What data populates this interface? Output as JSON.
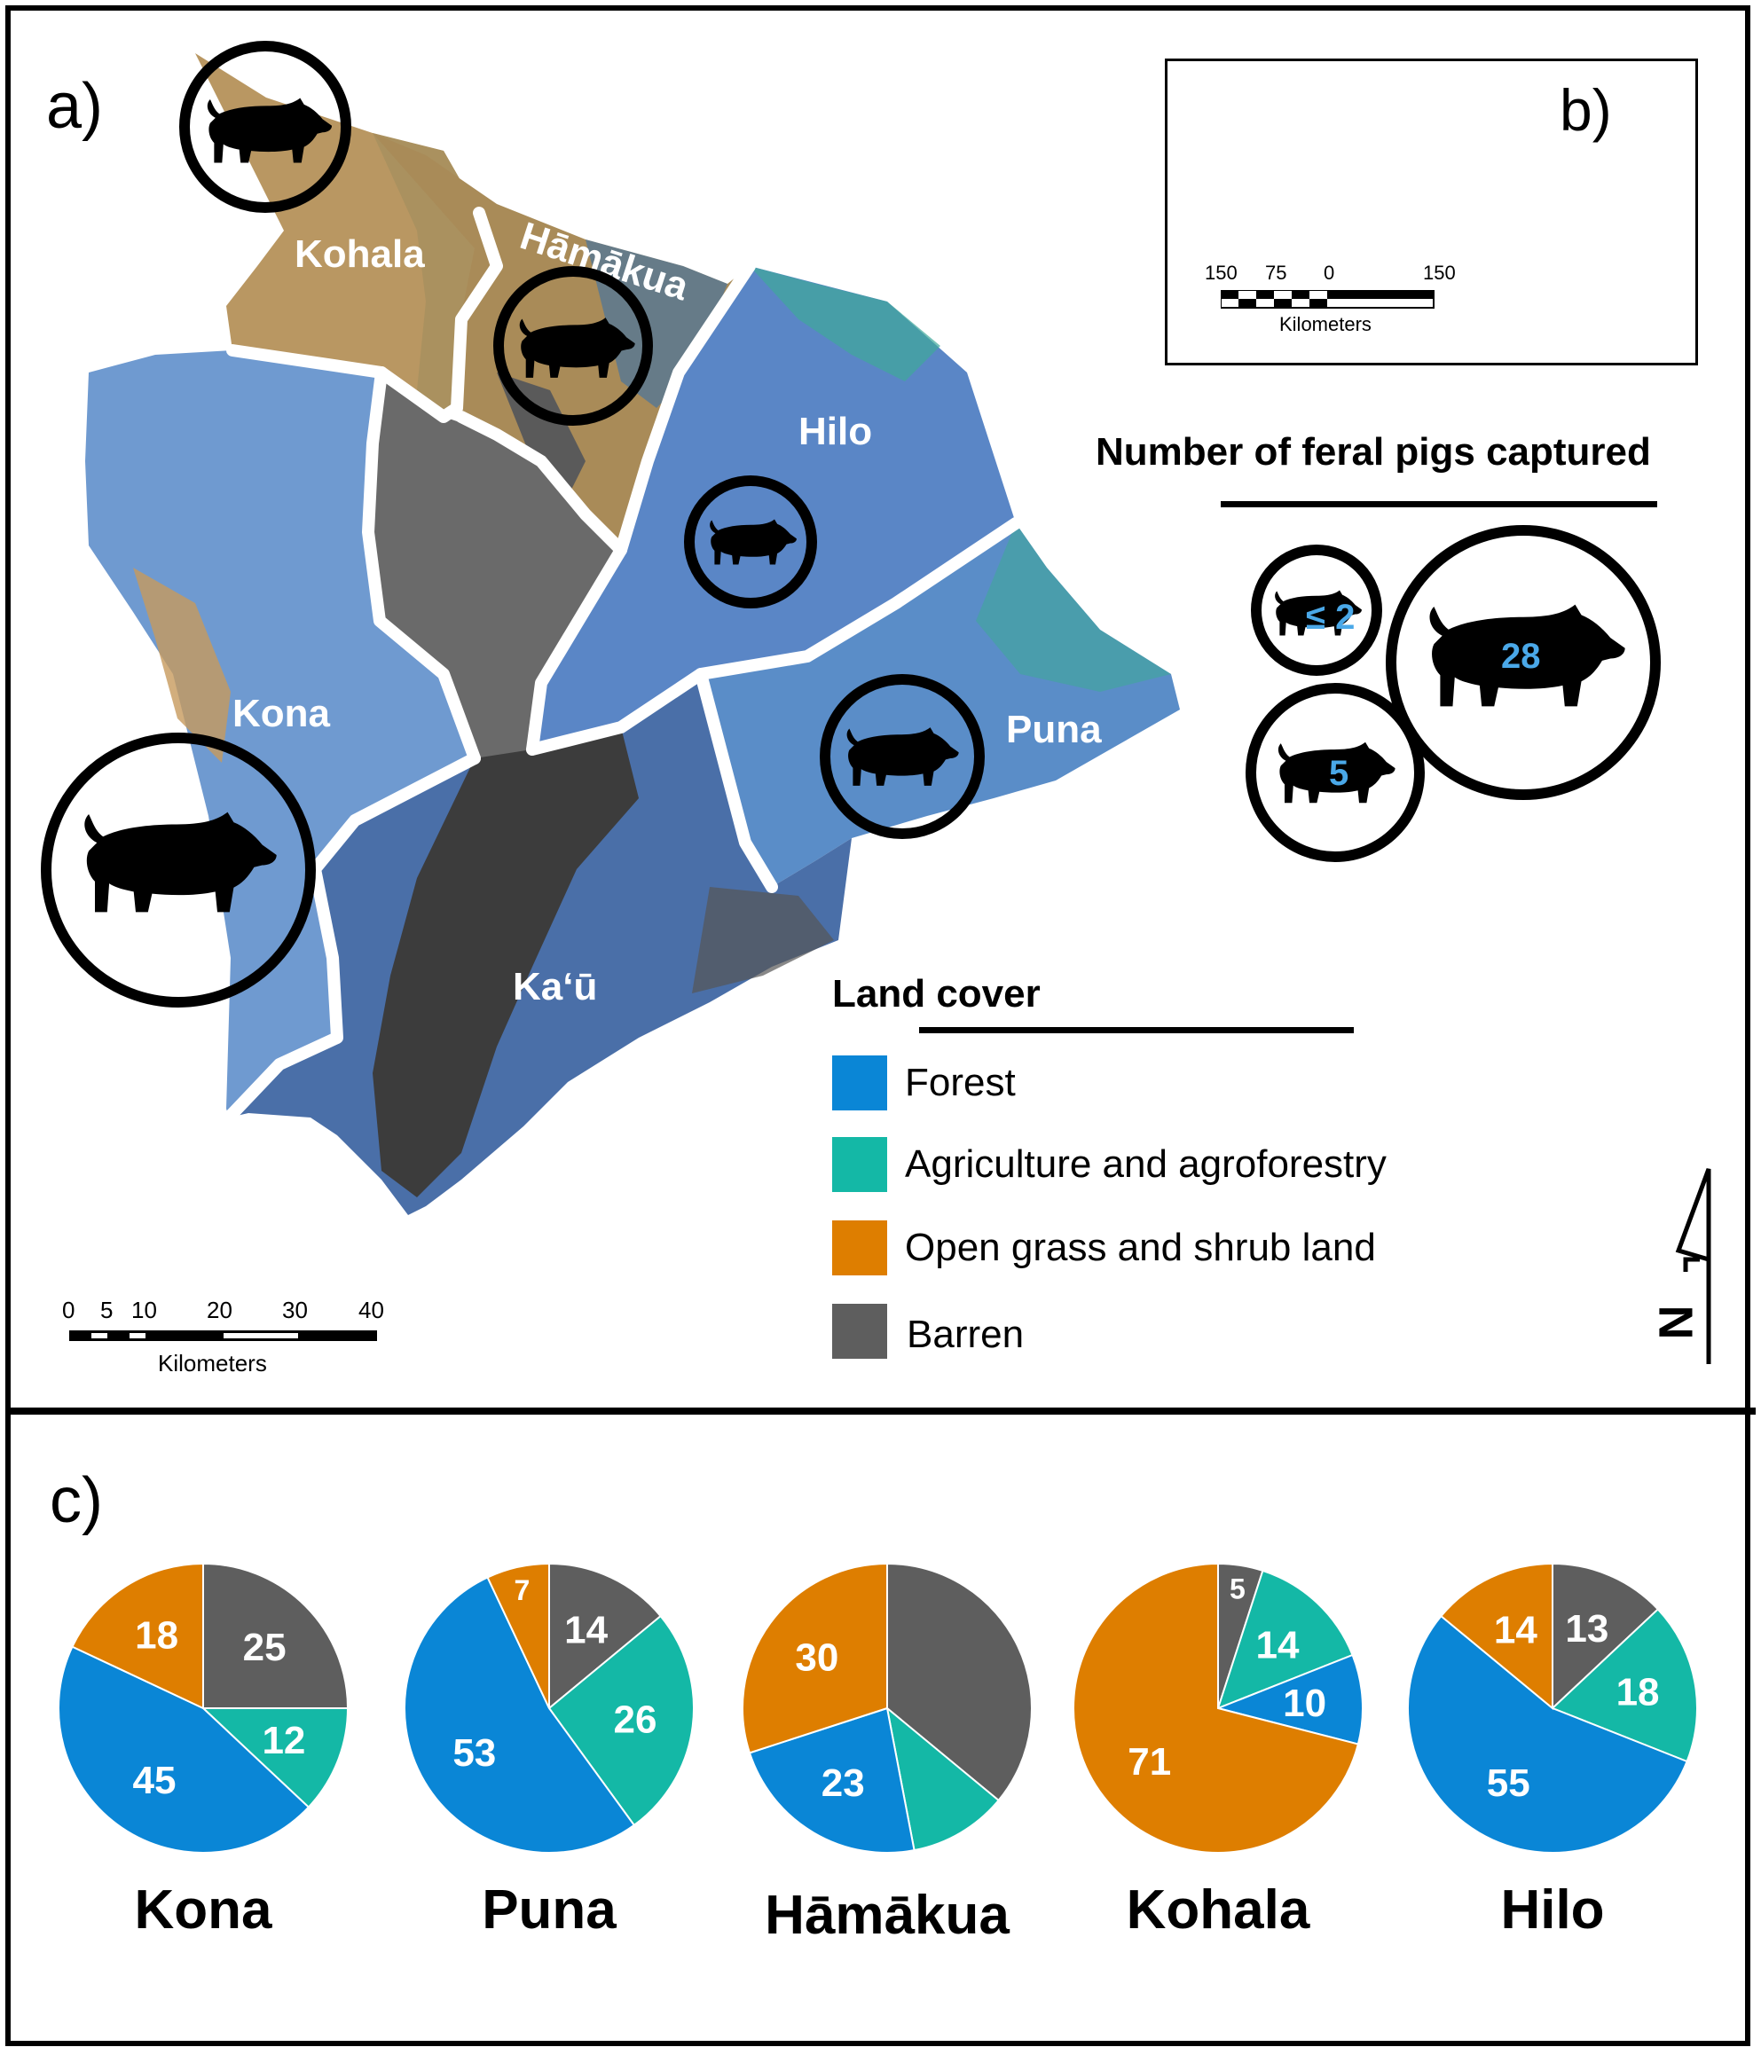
{
  "panels": {
    "a": "a)",
    "b": "b)",
    "c": "c)"
  },
  "regions": {
    "kohala": "Kohala",
    "hamakua": "Hāmākua",
    "hilo": "Hilo",
    "kona": "Kona",
    "puna": "Puna",
    "kau": "Ka‘ū"
  },
  "colors": {
    "forest": "#0a86d6",
    "agriculture": "#14b8a6",
    "grass": "#de7e00",
    "barren": "#5e5e5e"
  },
  "main_scale": {
    "ticks": [
      "0",
      "5",
      "10",
      "20",
      "30",
      "40"
    ],
    "unit": "Kilometers"
  },
  "inset_scale": {
    "ticks": [
      "150",
      "75",
      "0",
      "150"
    ],
    "unit": "Kilometers"
  },
  "capture_legend": {
    "title": "Number of feral pigs captured",
    "small": "≤ 2",
    "medium": "5",
    "large": "28"
  },
  "land_cover": {
    "title": "Land cover",
    "items": [
      {
        "label": "Forest",
        "color": "#0a86d6"
      },
      {
        "label": "Agriculture and agroforestry",
        "color": "#14b8a6"
      },
      {
        "label": "Open grass and shrub land",
        "color": "#de7e00"
      },
      {
        "label": "Barren",
        "color": "#5e5e5e"
      }
    ]
  },
  "north_arrow": "N",
  "chart_data": [
    {
      "type": "pie",
      "title": "Kona",
      "slices": [
        {
          "category": "Barren",
          "value": 25,
          "label": "25"
        },
        {
          "category": "Agriculture and agroforestry",
          "value": 12,
          "label": "12"
        },
        {
          "category": "Forest",
          "value": 45,
          "label": "45"
        },
        {
          "category": "Open grass and shrub land",
          "value": 18,
          "label": "18"
        }
      ]
    },
    {
      "type": "pie",
      "title": "Puna",
      "slices": [
        {
          "category": "Barren",
          "value": 14,
          "label": "14"
        },
        {
          "category": "Agriculture and agroforestry",
          "value": 26,
          "label": "26"
        },
        {
          "category": "Forest",
          "value": 53,
          "label": "53"
        },
        {
          "category": "Open grass and shrub land",
          "value": 7,
          "label": "7"
        }
      ]
    },
    {
      "type": "pie",
      "title": "Hāmākua",
      "slices": [
        {
          "category": "Barren",
          "value": 36,
          "label": ""
        },
        {
          "category": "Agriculture and agroforestry",
          "value": 11,
          "label": ""
        },
        {
          "category": "Forest",
          "value": 23,
          "label": "23"
        },
        {
          "category": "Open grass and shrub land",
          "value": 30,
          "label": "30"
        }
      ]
    },
    {
      "type": "pie",
      "title": "Kohala",
      "slices": [
        {
          "category": "Barren",
          "value": 5,
          "label": "5"
        },
        {
          "category": "Agriculture and agroforestry",
          "value": 14,
          "label": "14"
        },
        {
          "category": "Forest",
          "value": 10,
          "label": "10"
        },
        {
          "category": "Open grass and shrub land",
          "value": 71,
          "label": "71"
        }
      ]
    },
    {
      "type": "pie",
      "title": "Hilo",
      "slices": [
        {
          "category": "Barren",
          "value": 13,
          "label": "13"
        },
        {
          "category": "Agriculture and agroforestry",
          "value": 18,
          "label": "18"
        },
        {
          "category": "Forest",
          "value": 55,
          "label": "55"
        },
        {
          "category": "Open grass and shrub land",
          "value": 14,
          "label": "14"
        }
      ]
    }
  ]
}
